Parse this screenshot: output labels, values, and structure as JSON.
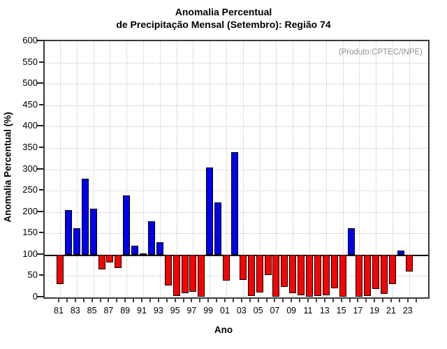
{
  "header": {
    "title_line1": "Anomalia Percentual",
    "title_line2": "de Precipitação Mensal (Setembro): Região 74",
    "annotation": "(Produto:CPTEC/INPE)"
  },
  "chart_data": {
    "type": "bar",
    "title": "Anomalia Percentual de Precipitação Mensal (Setembro): Região 74",
    "xlabel": "Ano",
    "ylabel": "Anomalia Percentual (%)",
    "ylim": [
      0,
      600
    ],
    "ytick_step": 50,
    "baseline": 100,
    "grid": "dotted",
    "legend_position": "none",
    "annotation": "(Produto:CPTEC/INPE)",
    "colors": {
      "above_baseline": "#0000ee",
      "below_baseline": "#fb0000",
      "bar_border": "#000000",
      "annotation_text": "#8f8f8f"
    },
    "x_tick_labels": [
      "81",
      "83",
      "85",
      "87",
      "89",
      "91",
      "93",
      "95",
      "97",
      "99",
      "01",
      "03",
      "05",
      "07",
      "09",
      "11",
      "13",
      "15",
      "17",
      "19",
      "21",
      "23"
    ],
    "years": [
      1981,
      1982,
      1983,
      1984,
      1985,
      1986,
      1987,
      1988,
      1989,
      1990,
      1991,
      1992,
      1993,
      1994,
      1995,
      1996,
      1997,
      1998,
      1999,
      2000,
      2001,
      2002,
      2003,
      2004,
      2005,
      2006,
      2007,
      2008,
      2009,
      2010,
      2011,
      2012,
      2013,
      2014,
      2015,
      2016,
      2017,
      2018,
      2019,
      2020,
      2021,
      2022,
      2023
    ],
    "values": [
      31,
      205,
      162,
      278,
      207,
      65,
      81,
      69,
      239,
      121,
      103,
      179,
      129,
      27,
      4,
      9,
      13,
      2,
      304,
      223,
      40,
      340,
      41,
      4,
      11,
      52,
      2,
      25,
      10,
      5,
      2,
      3,
      5,
      22,
      2,
      162,
      2,
      4,
      20,
      8,
      31,
      109,
      60
    ]
  }
}
